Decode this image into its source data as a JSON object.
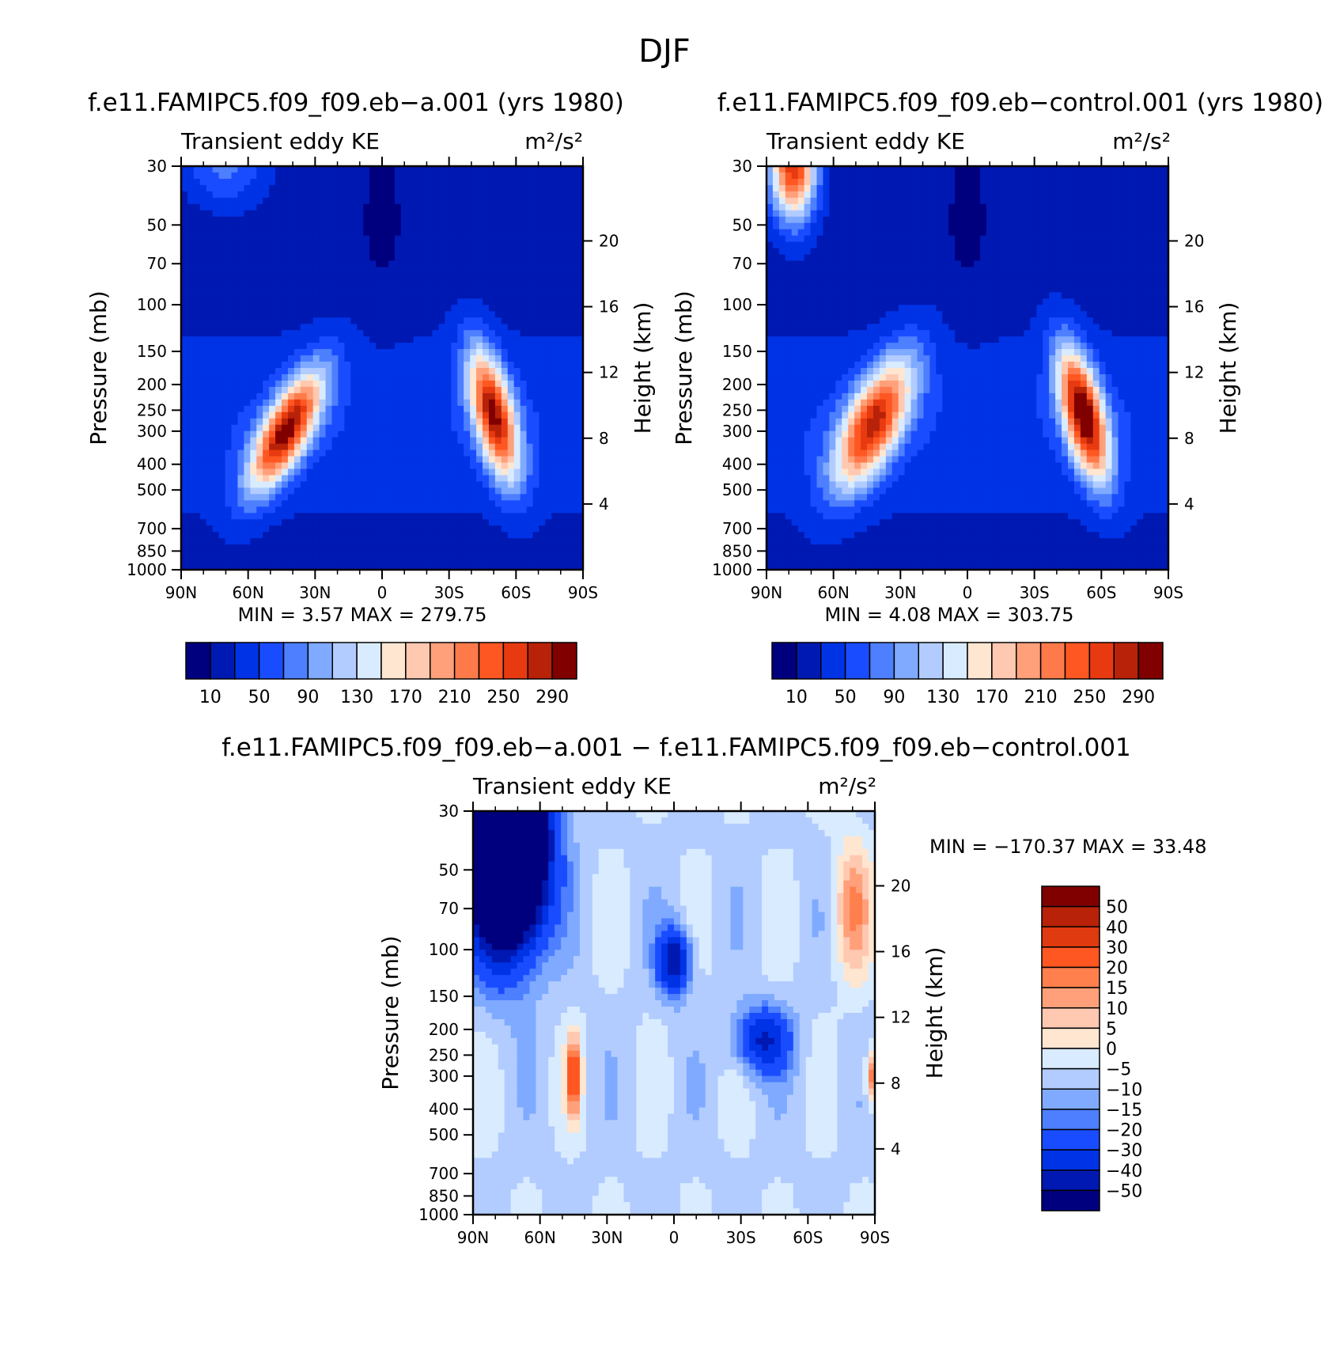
{
  "figure": {
    "title": "DJF",
    "diff_title": "f.e11.FAMIPC5.f09_f09.eb−a.001  −  f.e11.FAMIPC5.f09_f09.eb−control.001"
  },
  "panels": [
    {
      "case_title": "f.e11.FAMIPC5.f09_f09.eb−a.001 (yrs 1980)",
      "left_string": "Transient eddy KE",
      "right_string": "m²/s²",
      "stats": "MIN =    3.57   MAX  =  279.75",
      "colorbar_labels": [
        "10",
        "50",
        "90",
        "130",
        "170",
        "210",
        "250",
        "290"
      ]
    },
    {
      "case_title": "f.e11.FAMIPC5.f09_f09.eb−control.001 (yrs 1980)",
      "left_string": "Transient eddy KE",
      "right_string": "m²/s²",
      "stats": "MIN =    4.08   MAX  =  303.75",
      "colorbar_labels": [
        "10",
        "50",
        "90",
        "130",
        "170",
        "210",
        "250",
        "290"
      ]
    },
    {
      "case_title": "",
      "left_string": "Transient eddy KE",
      "right_string": "m²/s²",
      "stats": "MIN = −170.37   MAX =   33.48",
      "colorbar_labels": [
        "50",
        "40",
        "30",
        "20",
        "15",
        "10",
        "5",
        "0",
        "−5",
        "−10",
        "−15",
        "−20",
        "−30",
        "−40",
        "−50"
      ]
    }
  ],
  "colors": {
    "abs": [
      "#00007f",
      "#0019b2",
      "#0033e5",
      "#1a4cff",
      "#4d7fff",
      "#7faaff",
      "#b2ccff",
      "#d9ebff",
      "#ffe6d0",
      "#ffc8b0",
      "#ffa07a",
      "#ff7a4a",
      "#ff5722",
      "#e83a10",
      "#b72208",
      "#800000"
    ],
    "diff": [
      "#800000",
      "#b72208",
      "#e03a10",
      "#ff5722",
      "#ff7f4d",
      "#ffa07a",
      "#ffc8b0",
      "#ffe6d0",
      "#d9ebff",
      "#b2ccff",
      "#7faaff",
      "#4d7fff",
      "#1a4cff",
      "#0033e5",
      "#0019b2",
      "#00007f"
    ]
  },
  "chart_data": [
    {
      "type": "contour",
      "title": "f.e11.FAMIPC5.f09_f09.eb−a.001 (yrs 1980)",
      "variable": "Transient eddy KE",
      "units": "m²/s²",
      "x": [
        "90N",
        "60N",
        "30N",
        "0",
        "30S",
        "60S",
        "90S"
      ],
      "x_values": [
        90,
        60,
        30,
        0,
        -30,
        -60,
        -90
      ],
      "pressure_ticks": [
        "30",
        "50",
        "70",
        "100",
        "150",
        "200",
        "250",
        "300",
        "400",
        "500",
        "700",
        "850",
        "1000"
      ],
      "pressure_values": [
        30,
        50,
        70,
        100,
        150,
        200,
        250,
        300,
        400,
        500,
        700,
        850,
        1000
      ],
      "height_ticks": [
        "20",
        "16",
        "12",
        "8",
        "4"
      ],
      "height_values": [
        20,
        16,
        12,
        8,
        4
      ],
      "xlim": [
        90,
        -90
      ],
      "plim": [
        30,
        1000
      ],
      "ylabel": "Pressure (mb)",
      "y2label": "Height (km)",
      "contour_levels": [
        10,
        30,
        50,
        70,
        90,
        110,
        130,
        150,
        170,
        190,
        210,
        230,
        250,
        270,
        290
      ],
      "min": 3.57,
      "max": 279.75,
      "features": [
        {
          "type": "jet_max",
          "lat": 43,
          "p": 300,
          "value": 278,
          "lat_width": 11,
          "logp_width": 0.22,
          "tilt": 16
        },
        {
          "type": "jet_max",
          "lat": -50,
          "p": 260,
          "value": 272,
          "lat_width": 9,
          "logp_width": 0.24,
          "tilt": -8
        },
        {
          "type": "stratosphere",
          "lat": 70,
          "p": 30,
          "value": 75,
          "lat_width": 18,
          "logp_width": 0.15,
          "tilt": 0
        }
      ]
    },
    {
      "type": "contour",
      "title": "f.e11.FAMIPC5.f09_f09.eb−control.001 (yrs 1980)",
      "variable": "Transient eddy KE",
      "units": "m²/s²",
      "x": [
        "90N",
        "60N",
        "30N",
        "0",
        "30S",
        "60S",
        "90S"
      ],
      "x_values": [
        90,
        60,
        30,
        0,
        -30,
        -60,
        -90
      ],
      "pressure_ticks": [
        "30",
        "50",
        "70",
        "100",
        "150",
        "200",
        "250",
        "300",
        "400",
        "500",
        "700",
        "850",
        "1000"
      ],
      "pressure_values": [
        30,
        50,
        70,
        100,
        150,
        200,
        250,
        300,
        400,
        500,
        700,
        850,
        1000
      ],
      "height_ticks": [
        "20",
        "16",
        "12",
        "8",
        "4"
      ],
      "height_values": [
        20,
        16,
        12,
        8,
        4
      ],
      "xlim": [
        90,
        -90
      ],
      "plim": [
        30,
        1000
      ],
      "ylabel": "Pressure (mb)",
      "y2label": "Height (km)",
      "contour_levels": [
        10,
        30,
        50,
        70,
        90,
        110,
        130,
        150,
        170,
        190,
        210,
        230,
        250,
        270,
        290
      ],
      "min": 4.08,
      "max": 303.75,
      "features": [
        {
          "type": "jet_max",
          "lat": 42,
          "p": 280,
          "value": 255,
          "lat_width": 13,
          "logp_width": 0.24,
          "tilt": 14
        },
        {
          "type": "jet_max",
          "lat": -52,
          "p": 260,
          "value": 302,
          "lat_width": 9,
          "logp_width": 0.24,
          "tilt": -8
        },
        {
          "type": "stratosphere",
          "lat": 78,
          "p": 30,
          "value": 265,
          "lat_width": 10,
          "logp_width": 0.2,
          "tilt": 0
        }
      ]
    },
    {
      "type": "contour",
      "title": "f.e11.FAMIPC5.f09_f09.eb−a.001  −  f.e11.FAMIPC5.f09_f09.eb−control.001",
      "variable": "Transient eddy KE",
      "units": "m²/s²",
      "x": [
        "90N",
        "60N",
        "30N",
        "0",
        "30S",
        "60S",
        "90S"
      ],
      "x_values": [
        90,
        60,
        30,
        0,
        -30,
        -60,
        -90
      ],
      "pressure_ticks": [
        "30",
        "50",
        "70",
        "100",
        "150",
        "200",
        "250",
        "300",
        "400",
        "500",
        "700",
        "850",
        "1000"
      ],
      "pressure_values": [
        30,
        50,
        70,
        100,
        150,
        200,
        250,
        300,
        400,
        500,
        700,
        850,
        1000
      ],
      "height_ticks": [
        "20",
        "16",
        "12",
        "8",
        "4"
      ],
      "height_values": [
        20,
        16,
        12,
        8,
        4
      ],
      "xlim": [
        90,
        -90
      ],
      "plim": [
        30,
        1000
      ],
      "ylabel": "Pressure (mb)",
      "y2label": "Height (km)",
      "contour_levels": [
        -50,
        -40,
        -30,
        -20,
        -15,
        -10,
        -5,
        0,
        5,
        10,
        15,
        20,
        30,
        40,
        50
      ],
      "min": -170.37,
      "max": 33.48,
      "features": [
        {
          "type": "negative_core",
          "lat": 75,
          "p": 40,
          "value": -170,
          "lat_width": 16,
          "logp_width": 0.35,
          "tilt": 0
        },
        {
          "type": "positive_core",
          "lat": 45,
          "p": 300,
          "value": 33,
          "lat_width": 3,
          "logp_width": 0.15,
          "tilt": 0
        },
        {
          "type": "negative_core",
          "lat": 0,
          "p": 110,
          "value": -45,
          "lat_width": 7,
          "logp_width": 0.12,
          "tilt": 0
        },
        {
          "type": "negative_core",
          "lat": -40,
          "p": 220,
          "value": -35,
          "lat_width": 12,
          "logp_width": 0.12,
          "tilt": 0
        },
        {
          "type": "positive_core",
          "lat": -80,
          "p": 70,
          "value": 20,
          "lat_width": 8,
          "logp_width": 0.25,
          "tilt": 0
        },
        {
          "type": "positive_core",
          "lat": -90,
          "p": 300,
          "value": 30,
          "lat_width": 4,
          "logp_width": 0.1,
          "tilt": 0
        }
      ]
    }
  ]
}
